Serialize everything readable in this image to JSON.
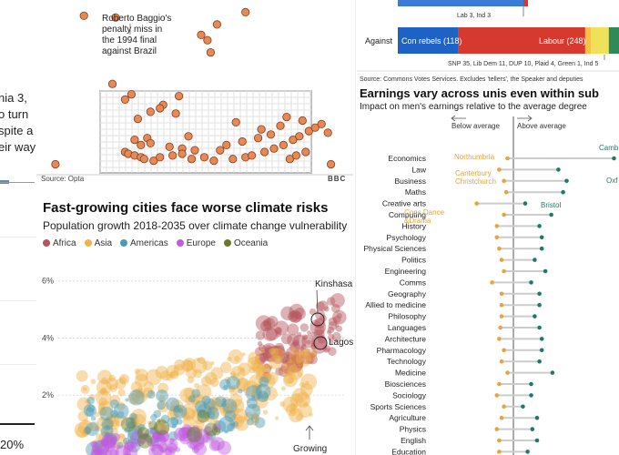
{
  "left_sliver": {
    "lines": [
      "nia 3,",
      "o turn",
      "spite a",
      "eir way"
    ],
    "bottom_value": "20%"
  },
  "football": {
    "annotation": [
      "Roberto Baggio's",
      "penalty miss in",
      "the 1994 final",
      "against Brazil"
    ],
    "source": "Source: Opta",
    "logo": "BBC",
    "point_color": "#e58a57",
    "chart_data": {
      "type": "scatter",
      "title": "",
      "xlim": [
        0,
        100
      ],
      "ylim": [
        0,
        100
      ],
      "x": [
        15,
        25,
        57,
        66,
        55,
        54,
        52,
        30,
        28,
        40,
        32,
        36,
        45,
        48,
        35,
        31,
        36,
        33,
        42,
        46,
        50,
        28,
        29,
        31,
        33,
        34,
        37,
        39,
        43,
        46,
        49,
        53,
        56,
        62,
        66,
        68,
        72,
        75,
        78,
        81,
        83,
        86,
        88,
        90,
        84,
        79,
        74,
        70,
        65,
        60,
        58,
        80,
        82,
        85,
        77,
        92,
        63,
        71,
        44,
        39,
        6,
        93,
        24
      ],
      "y": [
        91,
        90,
        86,
        93,
        70,
        77,
        80,
        46,
        43,
        40,
        32,
        36,
        45,
        22,
        21,
        20,
        18,
        17,
        16,
        15,
        14,
        13,
        12,
        11,
        10,
        9,
        8,
        10,
        11,
        12,
        9,
        10,
        8,
        9,
        10,
        11,
        13,
        15,
        17,
        20,
        22,
        25,
        27,
        29,
        31,
        33,
        23,
        21,
        19,
        17,
        14,
        9,
        11,
        13,
        28,
        24,
        30,
        26,
        35,
        38,
        6,
        6,
        52
      ]
    }
  },
  "cities": {
    "title": "Fast-growing cities face worse climate risks",
    "subtitle": "Population growth 2018-2035 over climate change vulnerability",
    "legend": [
      {
        "label": "Africa",
        "color": "#b5555c"
      },
      {
        "label": "Asia",
        "color": "#f0b24a"
      },
      {
        "label": "Americas",
        "color": "#4a9bb5"
      },
      {
        "label": "Europe",
        "color": "#c05ce0"
      },
      {
        "label": "Oceania",
        "color": "#6b7a2a"
      }
    ],
    "labels": {
      "kinshasa": "Kinshasa",
      "lagos": "Lagos",
      "growing": "Growing"
    },
    "chart_data": {
      "type": "scatter",
      "title": "Fast-growing cities face worse climate risks",
      "ylabel": "Population growth 2018-2035",
      "xlabel": "Climate change vulnerability",
      "yticks": [
        "6%",
        "4%",
        "2%"
      ],
      "ylim": [
        0,
        6.5
      ],
      "xlim": [
        0,
        100
      ],
      "series": [
        {
          "name": "Africa",
          "count": 110,
          "x_range": [
            70,
            98
          ],
          "y_range": [
            2.5,
            5.5
          ]
        },
        {
          "name": "Asia",
          "count": 230,
          "x_range": [
            8,
            88
          ],
          "y_range": [
            0.2,
            3.8
          ]
        },
        {
          "name": "Americas",
          "count": 90,
          "x_range": [
            10,
            72
          ],
          "y_range": [
            0,
            2.6
          ]
        },
        {
          "name": "Europe",
          "count": 70,
          "x_range": [
            12,
            58
          ],
          "y_range": [
            -0.2,
            0.9
          ]
        },
        {
          "name": "Oceania",
          "count": 10,
          "x_range": [
            20,
            55
          ],
          "y_range": [
            0.2,
            1.4
          ]
        }
      ],
      "highlights": [
        {
          "name": "Kinshasa",
          "x": 93,
          "y": 4.2
        },
        {
          "name": "Lagos",
          "x": 93,
          "y": 3.8
        }
      ]
    }
  },
  "votes": {
    "top_label": "Lab 3, Ind 3",
    "row_label": "Against",
    "con_label": "Con rebels (118)",
    "lab_label": "Labour (248)",
    "others_label": "SNP 35, Lib Dem 11, DUP 10, Plaid 4, Green 1, Ind 5",
    "source": "Source: Commons Votes Services. Excludes 'tellers', the Speaker and deputies",
    "chart_data": {
      "type": "bar",
      "categories": [
        "Against"
      ],
      "series": [
        {
          "name": "Con rebels",
          "values": [
            118
          ],
          "color": "#1f62c5"
        },
        {
          "name": "Labour",
          "values": [
            248
          ],
          "color": "#d63a2f"
        },
        {
          "name": "Lib Dem",
          "values": [
            11
          ],
          "color": "#f5c242"
        },
        {
          "name": "SNP",
          "values": [
            35
          ],
          "color": "#f0e15a"
        },
        {
          "name": "Others",
          "values": [
            20
          ],
          "color": "#2e8b57"
        }
      ]
    }
  },
  "earnings": {
    "title": "Earnings vary across unis even within sub",
    "subtitle": "Impact on men's earnings relative to the average degree",
    "below_label": "Below average",
    "above_label": "Above average",
    "annotations": {
      "northumbria": "Northumbria",
      "canterbury": "Canterbury Christchurch",
      "bristol": "Bristol",
      "cons_dance": "Cons Dance &Drama",
      "cambridge": "Camb",
      "oxford": "Oxf"
    },
    "colors": {
      "low": "#e8a33c",
      "high": "#1f7a6b",
      "line": "#cccccc"
    },
    "chart_data": {
      "type": "dot-range",
      "xlim": [
        -30,
        80
      ],
      "baseline": 0,
      "categories": [
        "Economics",
        "Law",
        "Business",
        "Maths",
        "Creative arts",
        "Computing",
        "History",
        "Psychology",
        "Physical Sciences",
        "Politics",
        "Engineering",
        "Comms",
        "Geography",
        "Allied to medicine",
        "Philosophy",
        "Languages",
        "Architecture",
        "Pharmacology",
        "Technology",
        "Medicine",
        "Biosciences",
        "Sociology",
        "Sports Sciences",
        "Agriculture",
        "Physics",
        "English",
        "Education"
      ],
      "low": [
        -5,
        -12,
        -8,
        -6,
        -31,
        -8,
        -14,
        -14,
        -12,
        -10,
        -8,
        -18,
        -10,
        -10,
        -10,
        -11,
        -12,
        -8,
        -10,
        -5,
        -12,
        -14,
        -8,
        -10,
        -14,
        -12,
        -12
      ],
      "high": [
        85,
        38,
        45,
        42,
        10,
        32,
        22,
        24,
        24,
        18,
        27,
        15,
        22,
        22,
        18,
        22,
        24,
        24,
        22,
        33,
        15,
        15,
        8,
        20,
        16,
        20,
        12
      ]
    }
  }
}
